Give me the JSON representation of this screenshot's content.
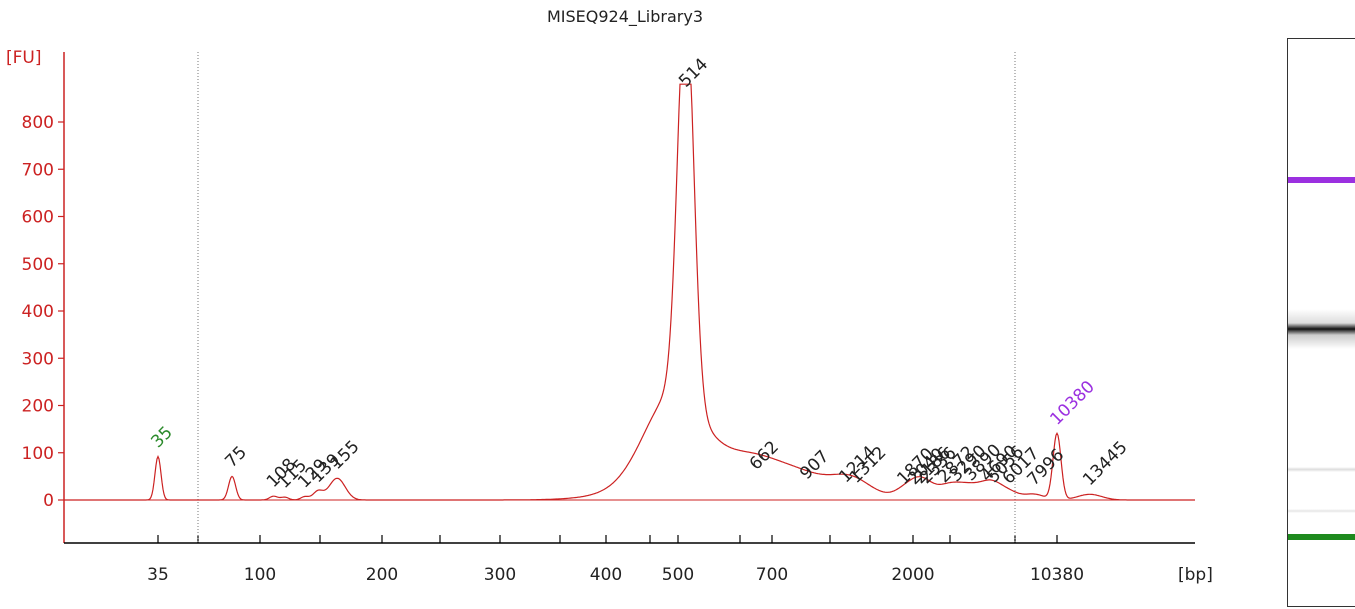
{
  "chart_data": {
    "type": "line",
    "title": "MISEQ924_Library3",
    "ylabel": "[FU]",
    "xlabel": "[bp]",
    "ylim": [
      -90,
      880
    ],
    "y_ticks": [
      0,
      100,
      200,
      300,
      400,
      500,
      600,
      700,
      800
    ],
    "x_tick_labels": [
      "35",
      "100",
      "200",
      "300",
      "400",
      "500",
      "700",
      "2000",
      "10380"
    ],
    "peaks": [
      {
        "label": "35",
        "size_bp": 35,
        "fu": 92,
        "color": "#2a8a2a"
      },
      {
        "label": "75",
        "size_bp": 75,
        "fu": 50
      },
      {
        "label": "108",
        "size_bp": 108,
        "fu": 8
      },
      {
        "label": "115",
        "size_bp": 115,
        "fu": 6
      },
      {
        "label": "129",
        "size_bp": 129,
        "fu": 7
      },
      {
        "label": "139",
        "size_bp": 139,
        "fu": 18
      },
      {
        "label": "155",
        "size_bp": 155,
        "fu": 46
      },
      {
        "label": "514",
        "size_bp": 514,
        "fu": 855
      },
      {
        "label": "662",
        "size_bp": 662,
        "fu": 45
      },
      {
        "label": "907",
        "size_bp": 907,
        "fu": 25
      },
      {
        "label": "1214",
        "size_bp": 1214,
        "fu": 18
      },
      {
        "label": "1312",
        "size_bp": 1312,
        "fu": 17
      },
      {
        "label": "1870",
        "size_bp": 1870,
        "fu": 14
      },
      {
        "label": "2040",
        "size_bp": 2040,
        "fu": 14
      },
      {
        "label": "2336",
        "size_bp": 2336,
        "fu": 16
      },
      {
        "label": "2186",
        "size_bp": 2186,
        "fu": 16
      },
      {
        "label": "2872",
        "size_bp": 2872,
        "fu": 18
      },
      {
        "label": "3290",
        "size_bp": 3290,
        "fu": 20
      },
      {
        "label": "3890",
        "size_bp": 3890,
        "fu": 22
      },
      {
        "label": "4690",
        "size_bp": 4690,
        "fu": 20
      },
      {
        "label": "5056",
        "size_bp": 5056,
        "fu": 18
      },
      {
        "label": "6017",
        "size_bp": 6017,
        "fu": 15
      },
      {
        "label": "7996",
        "size_bp": 7996,
        "fu": 12
      },
      {
        "label": "10380",
        "size_bp": 10380,
        "fu": 140,
        "color": "#9b30e0"
      },
      {
        "label": "13445",
        "size_bp": 13445,
        "fu": 12
      }
    ],
    "grid": false,
    "line_color": "#cc2222"
  },
  "gel": {
    "bands": [
      {
        "name": "upper-marker",
        "color": "#9b30e0"
      },
      {
        "name": "library-band",
        "color": "#111111"
      },
      {
        "name": "lower-marker",
        "color": "#1e8a1e"
      }
    ]
  }
}
